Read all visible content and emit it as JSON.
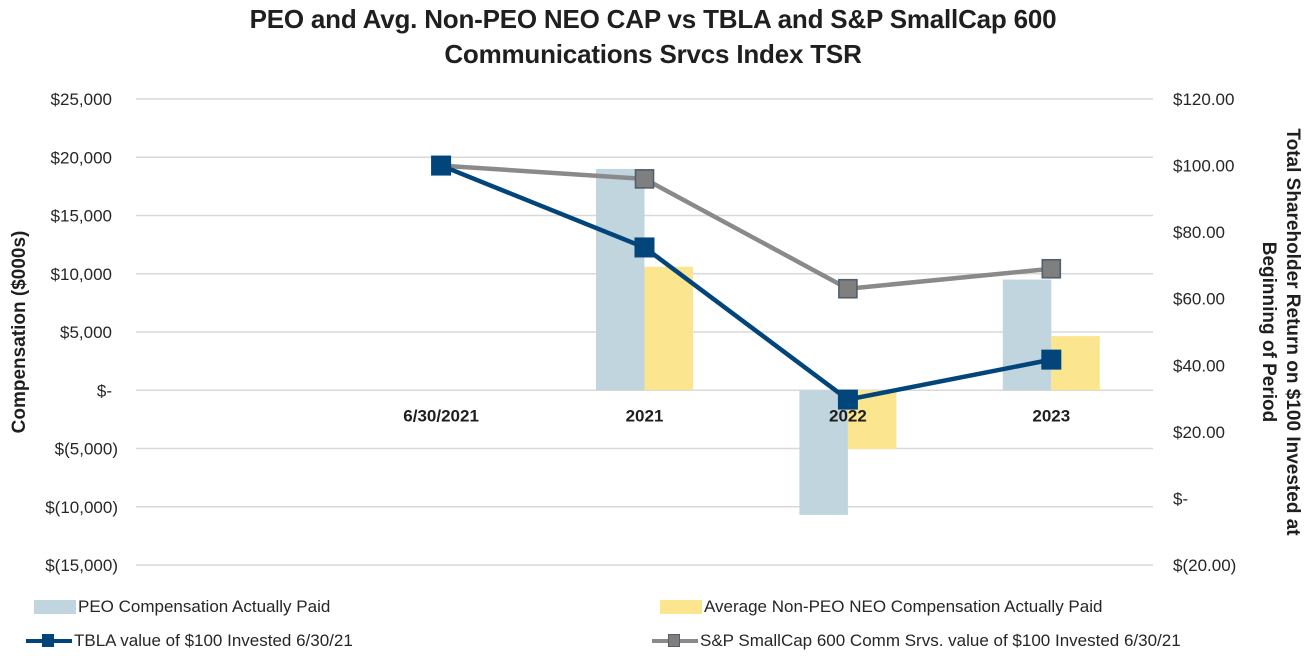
{
  "chart_data": {
    "type": "bar+line",
    "title": [
      "PEO and Avg. Non-PEO NEO CAP vs TBLA and S&P SmallCap 600",
      "Communications Srvcs Index TSR"
    ],
    "categories": [
      "",
      "6/30/2021",
      "2021",
      "2022",
      "2023"
    ],
    "y_left": {
      "label": "Compensation ($000s)",
      "range": [
        -15000,
        25000
      ],
      "ticks": [
        25000,
        20000,
        15000,
        10000,
        5000,
        0,
        -5000,
        -10000,
        -15000
      ],
      "tick_labels": [
        "$25,000",
        "$20,000",
        "$15,000",
        "$10,000",
        "$5,000",
        "$-",
        "$(5,000)",
        "$(10,000)",
        "$(15,000)"
      ]
    },
    "y_right": {
      "label": [
        "Total Shareholder Return on $100 Invested at",
        "Beginning of Period"
      ],
      "range": [
        -20,
        120
      ],
      "ticks": [
        120,
        100,
        80,
        60,
        40,
        20,
        0,
        -20
      ],
      "tick_labels": [
        "$120.00",
        "$100.00",
        "$80.00",
        "$60.00",
        "$40.00",
        "$20.00",
        "$-",
        "$(20.00)"
      ]
    },
    "grid": true,
    "legend_position": "bottom",
    "bar_series": [
      {
        "name": "PEO Compensation Actually Paid",
        "color": "#c0d5dd",
        "axis": "left",
        "values": [
          null,
          null,
          19000,
          -10700,
          9500
        ]
      },
      {
        "name": "Average Non-PEO NEO Compensation Actually Paid",
        "color": "#fbe68f",
        "axis": "left",
        "values": [
          null,
          null,
          10600,
          -5050,
          4650
        ]
      }
    ],
    "line_series": [
      {
        "name": "TBLA value of $100 Invested 6/30/21",
        "color": "#02457a",
        "marker_fill": "#02457a",
        "marker_stroke": "#02457a",
        "axis": "right",
        "values": [
          null,
          100,
          75.4,
          29.7,
          41.7
        ]
      },
      {
        "name": "S&P SmallCap 600 Comm Srvs. value of $100 Invested 6/30/21",
        "color": "#8a8a8a",
        "marker_fill": "#7f7f7f",
        "marker_stroke": "#4f5f6e",
        "axis": "right",
        "values": [
          null,
          100,
          96.0,
          63.0,
          69.0
        ]
      }
    ]
  }
}
